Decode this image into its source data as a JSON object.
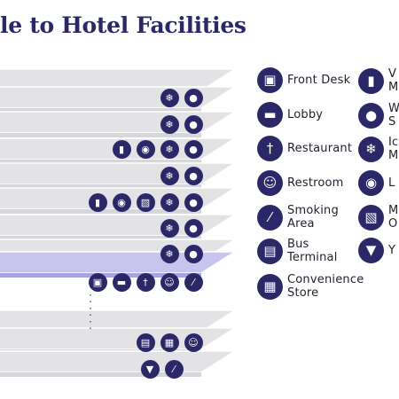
{
  "title": "le to Hotel Facilities",
  "colors": {
    "navy": "#2b2868",
    "floor": "#e3e3e6",
    "highlight": "#c8c4ee"
  },
  "floors": [
    {
      "icons": []
    },
    {
      "icons": [
        "air-conditioning-icon",
        "water-drop-icon"
      ]
    },
    {
      "icons": [
        "air-conditioning-icon",
        "water-drop-icon"
      ]
    },
    {
      "icons": [
        "vending-machine-icon",
        "washing-machine-icon",
        "air-conditioning-icon",
        "water-drop-icon"
      ]
    },
    {
      "icons": [
        "air-conditioning-icon",
        "water-drop-icon"
      ]
    },
    {
      "icons": [
        "vending-machine-icon",
        "washing-machine-icon",
        "microwave-icon",
        "air-conditioning-icon",
        "water-drop-icon"
      ]
    },
    {
      "icons": [
        "air-conditioning-icon",
        "water-drop-icon"
      ]
    },
    {
      "icons": [
        "air-conditioning-icon",
        "water-drop-icon"
      ]
    },
    {
      "highlight": true,
      "icons": [
        "front-desk-icon",
        "sofa-icon",
        "fork-knife-icon",
        "restroom-icon",
        "cigarette-icon"
      ]
    },
    {
      "icons": []
    },
    {
      "icons": [
        "bus-icon",
        "store-icon",
        "restroom-icon"
      ]
    },
    {
      "icons": [
        "yogurt-icon",
        "cigarette-icon"
      ]
    }
  ],
  "legend": [
    {
      "icon": "front-desk-icon",
      "label": "Front Desk"
    },
    {
      "icon": "sofa-icon",
      "label": "Lobby"
    },
    {
      "icon": "fork-knife-icon",
      "label": "Restaurant"
    },
    {
      "icon": "restroom-icon",
      "label": "Restroom"
    },
    {
      "icon": "cigarette-icon",
      "label": "Smoking\nArea"
    },
    {
      "icon": "bus-icon",
      "label": "Bus\nTerminal"
    },
    {
      "icon": "store-icon",
      "label": "Convenience\nStore"
    },
    {
      "icon": "vending-machine-icon",
      "label": "V\nM"
    },
    {
      "icon": "water-drop-icon",
      "label": "W\nS"
    },
    {
      "icon": "air-conditioning-icon",
      "label": "Ic\nM"
    },
    {
      "icon": "washing-machine-icon",
      "label": "L"
    },
    {
      "icon": "microwave-icon",
      "label": "M\nO"
    },
    {
      "icon": "yogurt-icon",
      "label": "Y"
    }
  ]
}
